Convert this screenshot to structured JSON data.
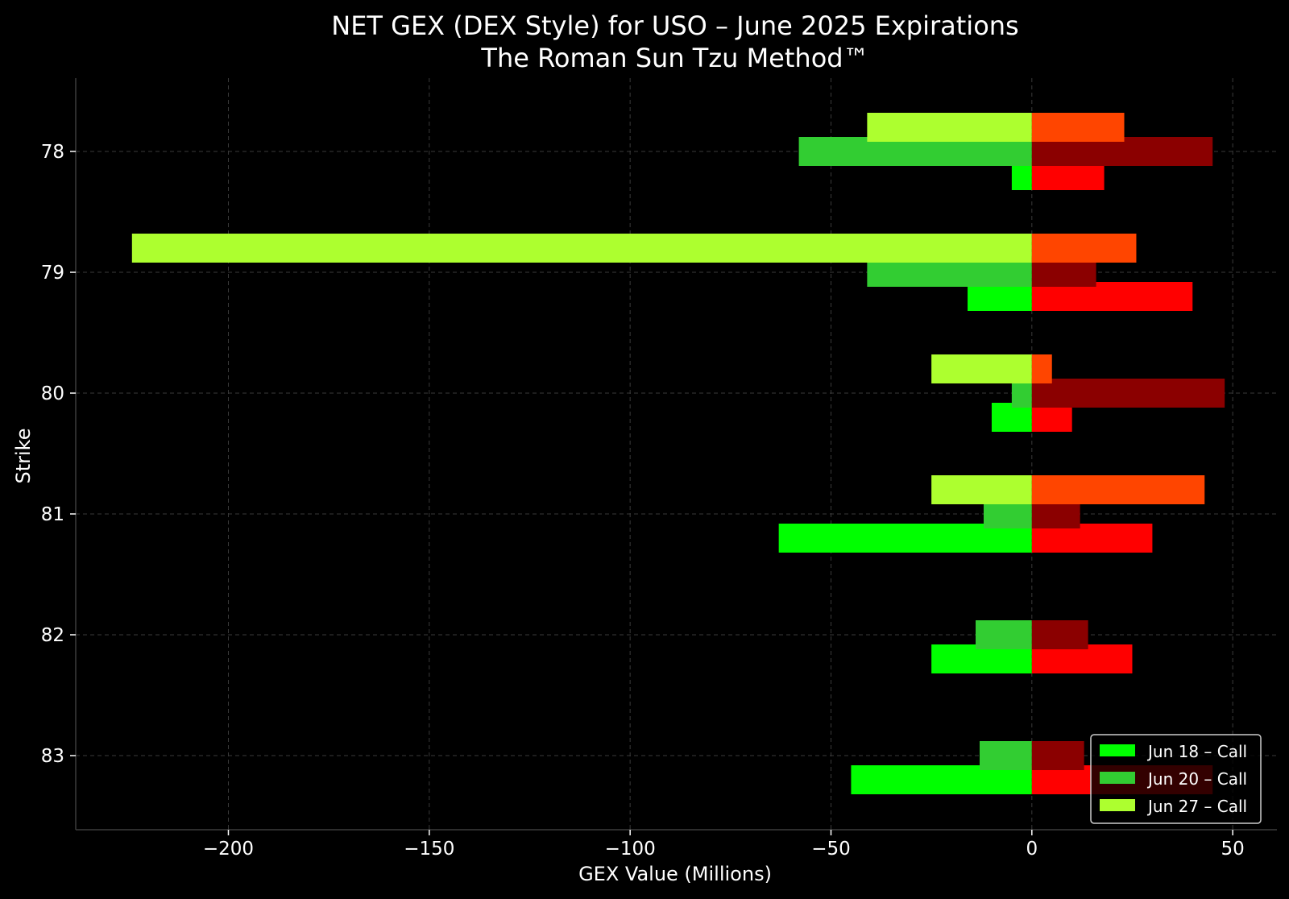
{
  "chart_data": {
    "type": "bar",
    "orientation": "horizontal",
    "title": "NET GEX (DEX Style) for USO – June 2025 Expirations",
    "subtitle": "The Roman Sun Tzu Method™",
    "xlabel": "GEX Value (Millions)",
    "ylabel": "Strike",
    "xlim": [
      -238,
      61
    ],
    "xticks": [
      -200,
      -150,
      -100,
      -50,
      0,
      50
    ],
    "xtick_labels": [
      "−200",
      "−150",
      "−100",
      "−50",
      "0",
      "50"
    ],
    "categories": [
      "78",
      "79",
      "80",
      "81",
      "82",
      "83"
    ],
    "grid": true,
    "legend_position": "bottom-right",
    "background": "#000000",
    "series": [
      {
        "name": "Jun 18 – Call",
        "kind": "call",
        "color": "#00ff00",
        "offset": 1,
        "values": [
          -5,
          -16,
          -10,
          -63,
          -25,
          -45
        ]
      },
      {
        "name": "Jun 20 – Call",
        "kind": "call",
        "color": "#32cd32",
        "offset": 0,
        "values": [
          -58,
          -41,
          -5,
          -12,
          -14,
          -13
        ]
      },
      {
        "name": "Jun 27 – Call",
        "kind": "call",
        "color": "#adff2f",
        "offset": -1,
        "values": [
          -41,
          -224,
          -25,
          -25,
          null,
          null
        ]
      },
      {
        "kind": "put",
        "color": "#ff0000",
        "offset": 1,
        "values": [
          18,
          40,
          10,
          30,
          25,
          45
        ]
      },
      {
        "kind": "put",
        "color": "#8b0000",
        "offset": 0,
        "values": [
          45,
          16,
          48,
          12,
          14,
          13
        ]
      },
      {
        "kind": "put",
        "color": "#ff4500",
        "offset": -1,
        "values": [
          23,
          26,
          5,
          43,
          null,
          null
        ]
      }
    ],
    "legend": [
      {
        "label": "Jun 18 – Call",
        "color": "#00ff00"
      },
      {
        "label": "Jun 20 – Call",
        "color": "#32cd32"
      },
      {
        "label": "Jun 27 – Call",
        "color": "#adff2f"
      }
    ]
  }
}
